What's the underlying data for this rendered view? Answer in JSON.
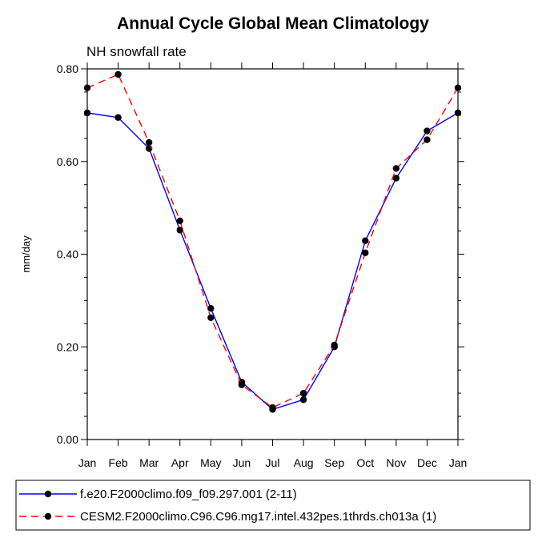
{
  "chart_data": {
    "type": "line",
    "title": "Annual Cycle Global Mean Climatology",
    "subtitle": "NH snowfall rate",
    "xlabel": "",
    "ylabel": "mm/day",
    "ylim": [
      0,
      0.8
    ],
    "categories": [
      "Jan",
      "Feb",
      "Mar",
      "Apr",
      "May",
      "Jun",
      "Jul",
      "Aug",
      "Sep",
      "Oct",
      "Nov",
      "Dec",
      "Jan"
    ],
    "y_ticks": [
      {
        "value": 0.0,
        "label": "0.00"
      },
      {
        "value": 0.2,
        "label": "0.20"
      },
      {
        "value": 0.4,
        "label": "0.40"
      },
      {
        "value": 0.6,
        "label": "0.60"
      },
      {
        "value": 0.8,
        "label": "0.80"
      }
    ],
    "legend_position": "bottom",
    "series": [
      {
        "name": "f.e20.F2000climo.f09_f09.297.001 (2-11)",
        "color": "#0000ff",
        "dash": "solid",
        "values": [
          0.705,
          0.695,
          0.628,
          0.452,
          0.283,
          0.124,
          0.065,
          0.086,
          0.2,
          0.429,
          0.564,
          0.666,
          0.705
        ]
      },
      {
        "name": "CESM2.F2000climo.C96.C96.mg17.intel.432pes.1thrds.ch013a (1)",
        "color": "#ff0000",
        "dash": "dashed",
        "values": [
          0.759,
          0.788,
          0.641,
          0.472,
          0.263,
          0.118,
          0.069,
          0.1,
          0.204,
          0.403,
          0.585,
          0.647,
          0.759
        ]
      }
    ]
  }
}
